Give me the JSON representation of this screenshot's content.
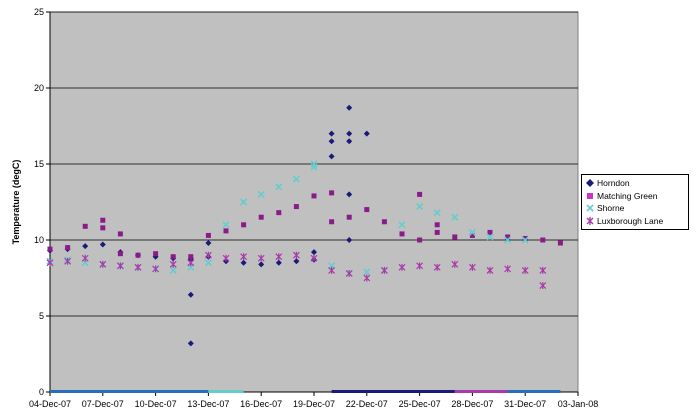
{
  "chart_data": {
    "type": "scatter",
    "title": "",
    "xlabel": "",
    "ylabel": "Temperature (degC)",
    "x_tick_labels": [
      "04-Dec-07",
      "07-Dec-07",
      "10-Dec-07",
      "13-Dec-07",
      "16-Dec-07",
      "19-Dec-07",
      "22-Dec-07",
      "25-Dec-07",
      "28-Dec-07",
      "31-Dec-07",
      "03-Jan-08"
    ],
    "xlim": [
      "04-Dec-07",
      "03-Jan-08"
    ],
    "ylim": [
      0,
      25
    ],
    "y_ticks": [
      0,
      5,
      10,
      15,
      20,
      25
    ],
    "grid": "horizontal major gridlines",
    "legend_position": "right",
    "plot_background": "#c0c0c0",
    "series": [
      {
        "name": "Horndon",
        "color": "#1a1a7a",
        "marker": "diamond",
        "points": [
          [
            "04-Dec-07",
            9.3
          ],
          [
            "05-Dec-07",
            9.4
          ],
          [
            "06-Dec-07",
            9.6
          ],
          [
            "07-Dec-07",
            9.7
          ],
          [
            "08-Dec-07",
            9.2
          ],
          [
            "09-Dec-07",
            9.0
          ],
          [
            "10-Dec-07",
            8.9
          ],
          [
            "11-Dec-07",
            8.8
          ],
          [
            "12-Dec-07",
            8.7
          ],
          [
            "12-Dec-07",
            8.8
          ],
          [
            "12-Dec-07",
            6.4
          ],
          [
            "12-Dec-07",
            3.2
          ],
          [
            "13-Dec-07",
            9.8
          ],
          [
            "13-Dec-07",
            8.9
          ],
          [
            "14-Dec-07",
            8.6
          ],
          [
            "15-Dec-07",
            8.5
          ],
          [
            "16-Dec-07",
            8.4
          ],
          [
            "17-Dec-07",
            8.5
          ],
          [
            "18-Dec-07",
            8.6
          ],
          [
            "19-Dec-07",
            8.7
          ],
          [
            "19-Dec-07",
            9.2
          ],
          [
            "20-Dec-07",
            16.5
          ],
          [
            "20-Dec-07",
            17.0
          ],
          [
            "20-Dec-07",
            15.5
          ],
          [
            "21-Dec-07",
            13.0
          ],
          [
            "21-Dec-07",
            10.0
          ],
          [
            "21-Dec-07",
            16.5
          ],
          [
            "21-Dec-07",
            17.0
          ],
          [
            "21-Dec-07",
            18.7
          ],
          [
            "22-Dec-07",
            17.0
          ]
        ]
      },
      {
        "name": "Matching Green",
        "color": "#8b1a8b",
        "marker": "square",
        "points": [
          [
            "04-Dec-07",
            9.4
          ],
          [
            "05-Dec-07",
            9.5
          ],
          [
            "06-Dec-07",
            10.9
          ],
          [
            "07-Dec-07",
            10.8
          ],
          [
            "07-Dec-07",
            11.3
          ],
          [
            "08-Dec-07",
            10.4
          ],
          [
            "08-Dec-07",
            9.1
          ],
          [
            "09-Dec-07",
            9.0
          ],
          [
            "10-Dec-07",
            9.1
          ],
          [
            "11-Dec-07",
            8.9
          ],
          [
            "12-Dec-07",
            8.9
          ],
          [
            "13-Dec-07",
            10.3
          ],
          [
            "14-Dec-07",
            10.6
          ],
          [
            "15-Dec-07",
            11.0
          ],
          [
            "16-Dec-07",
            11.5
          ],
          [
            "17-Dec-07",
            11.8
          ],
          [
            "18-Dec-07",
            12.2
          ],
          [
            "19-Dec-07",
            12.9
          ],
          [
            "20-Dec-07",
            13.1
          ],
          [
            "20-Dec-07",
            11.2
          ],
          [
            "21-Dec-07",
            11.5
          ],
          [
            "22-Dec-07",
            12.0
          ],
          [
            "23-Dec-07",
            11.2
          ],
          [
            "24-Dec-07",
            10.4
          ],
          [
            "25-Dec-07",
            10.0
          ],
          [
            "25-Dec-07",
            13.0
          ],
          [
            "26-Dec-07",
            11.0
          ],
          [
            "26-Dec-07",
            10.5
          ],
          [
            "27-Dec-07",
            10.2
          ],
          [
            "28-Dec-07",
            10.3
          ],
          [
            "29-Dec-07",
            10.5
          ],
          [
            "30-Dec-07",
            10.2
          ],
          [
            "31-Dec-07",
            10.1
          ],
          [
            "01-Jan-08",
            10.0
          ],
          [
            "02-Jan-08",
            9.8
          ]
        ]
      },
      {
        "name": "Shorne",
        "color": "#66cccc",
        "marker": "x",
        "points": [
          [
            "04-Dec-07",
            8.6
          ],
          [
            "05-Dec-07",
            8.7
          ],
          [
            "06-Dec-07",
            8.5
          ],
          [
            "07-Dec-07",
            8.4
          ],
          [
            "08-Dec-07",
            8.3
          ],
          [
            "09-Dec-07",
            8.2
          ],
          [
            "10-Dec-07",
            8.1
          ],
          [
            "11-Dec-07",
            8.0
          ],
          [
            "12-Dec-07",
            8.2
          ],
          [
            "13-Dec-07",
            8.5
          ],
          [
            "14-Dec-07",
            11.0
          ],
          [
            "15-Dec-07",
            12.5
          ],
          [
            "16-Dec-07",
            13.0
          ],
          [
            "17-Dec-07",
            13.5
          ],
          [
            "18-Dec-07",
            14.0
          ],
          [
            "19-Dec-07",
            14.8
          ],
          [
            "19-Dec-07",
            15.0
          ],
          [
            "20-Dec-07",
            8.3
          ],
          [
            "21-Dec-07",
            7.8
          ],
          [
            "22-Dec-07",
            7.9
          ],
          [
            "23-Dec-07",
            8.0
          ],
          [
            "24-Dec-07",
            11.0
          ],
          [
            "25-Dec-07",
            12.2
          ],
          [
            "26-Dec-07",
            11.8
          ],
          [
            "27-Dec-07",
            11.5
          ],
          [
            "28-Dec-07",
            10.5
          ],
          [
            "29-Dec-07",
            10.2
          ],
          [
            "30-Dec-07",
            10.0
          ],
          [
            "31-Dec-07",
            10.0
          ]
        ]
      },
      {
        "name": "Luxborough Lane",
        "color": "#aa3aaa",
        "marker": "star",
        "points": [
          [
            "04-Dec-07",
            8.5
          ],
          [
            "05-Dec-07",
            8.6
          ],
          [
            "06-Dec-07",
            8.8
          ],
          [
            "07-Dec-07",
            8.4
          ],
          [
            "08-Dec-07",
            8.3
          ],
          [
            "09-Dec-07",
            8.2
          ],
          [
            "10-Dec-07",
            8.1
          ],
          [
            "11-Dec-07",
            8.4
          ],
          [
            "12-Dec-07",
            8.5
          ],
          [
            "13-Dec-07",
            9.0
          ],
          [
            "14-Dec-07",
            8.8
          ],
          [
            "15-Dec-07",
            8.9
          ],
          [
            "16-Dec-07",
            8.8
          ],
          [
            "17-Dec-07",
            8.9
          ],
          [
            "18-Dec-07",
            9.0
          ],
          [
            "19-Dec-07",
            8.8
          ],
          [
            "20-Dec-07",
            8.0
          ],
          [
            "21-Dec-07",
            7.8
          ],
          [
            "22-Dec-07",
            7.5
          ],
          [
            "23-Dec-07",
            8.0
          ],
          [
            "24-Dec-07",
            8.2
          ],
          [
            "25-Dec-07",
            8.3
          ],
          [
            "26-Dec-07",
            8.2
          ],
          [
            "27-Dec-07",
            8.4
          ],
          [
            "28-Dec-07",
            8.2
          ],
          [
            "29-Dec-07",
            8.0
          ],
          [
            "30-Dec-07",
            8.1
          ],
          [
            "31-Dec-07",
            8.0
          ],
          [
            "01-Jan-08",
            7.0
          ],
          [
            "01-Jan-08",
            8.0
          ]
        ]
      }
    ]
  }
}
